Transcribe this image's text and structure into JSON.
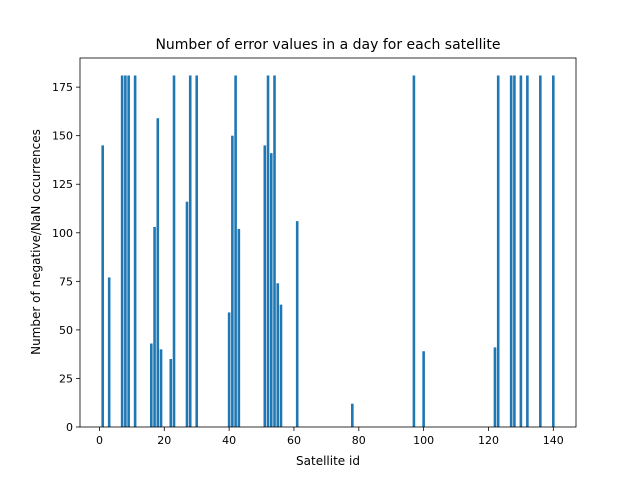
{
  "chart_data": {
    "type": "bar",
    "title": "Number of error values in a day for each satellite",
    "xlabel": "Satellite id",
    "ylabel": "Number of negative/NaN occurrences",
    "xlim": [
      -6,
      147
    ],
    "ylim": [
      0,
      190
    ],
    "xticks": [
      0,
      20,
      40,
      60,
      80,
      100,
      120,
      140
    ],
    "yticks": [
      0,
      25,
      50,
      75,
      100,
      125,
      150,
      175
    ],
    "grid": false,
    "legend": "none",
    "bar_color": "#1f77b4",
    "x": [
      1,
      3,
      7,
      8,
      9,
      11,
      16,
      17,
      18,
      19,
      22,
      23,
      27,
      28,
      30,
      40,
      41,
      42,
      43,
      51,
      52,
      53,
      54,
      55,
      56,
      61,
      78,
      97,
      100,
      122,
      123,
      127,
      128,
      130,
      132,
      136,
      140
    ],
    "values": [
      145,
      77,
      181,
      181,
      181,
      181,
      43,
      103,
      159,
      40,
      35,
      181,
      116,
      181,
      181,
      59,
      150,
      181,
      102,
      145,
      181,
      141,
      181,
      74,
      63,
      106,
      12,
      181,
      39,
      41,
      181,
      181,
      181,
      181,
      181,
      181,
      181
    ]
  }
}
